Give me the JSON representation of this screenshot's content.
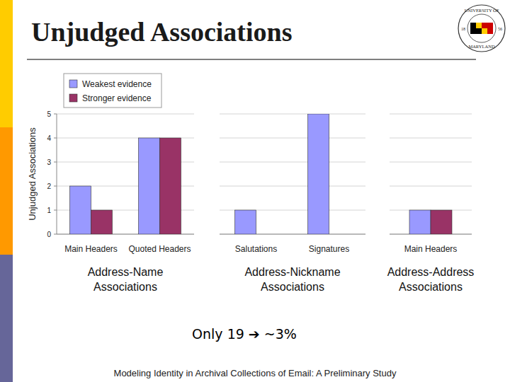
{
  "title": "Unjudged Associations",
  "logo": {
    "top": "UNIVERSITY OF",
    "bottom": "MARYLAND",
    "left": "18",
    "right": "56"
  },
  "chart_data": [
    {
      "type": "bar",
      "categories": [
        "Main Headers",
        "Quoted Headers"
      ],
      "series": [
        {
          "name": "Weakest evidence",
          "color": "#9999ff",
          "values": [
            2,
            4
          ]
        },
        {
          "name": "Stronger evidence",
          "color": "#993366",
          "values": [
            1,
            4
          ]
        }
      ],
      "x_label": "Address-Name Associations",
      "y_label": "Unjudged Associations",
      "ylim": [
        0,
        5
      ],
      "yticks": [
        0,
        1,
        2,
        3,
        4,
        5
      ],
      "grid": true,
      "legend": "top"
    },
    {
      "type": "bar",
      "categories": [
        "Salutations",
        "Signatures"
      ],
      "series": [
        {
          "name": "Weakest evidence",
          "color": "#9999ff",
          "values": [
            1,
            5
          ]
        },
        {
          "name": "Stronger evidence",
          "color": "#993366",
          "values": [
            0,
            0
          ]
        }
      ],
      "x_label": "Address-Nickname Associations",
      "ylim": [
        0,
        5
      ],
      "yticks": [
        0,
        1,
        2,
        3,
        4,
        5
      ],
      "grid": true,
      "tick_labels": "x"
    },
    {
      "type": "bar",
      "categories": [
        "Main Headers"
      ],
      "series": [
        {
          "name": "Weakest evidence",
          "color": "#9999ff",
          "values": [
            1
          ]
        },
        {
          "name": "Stronger evidence",
          "color": "#993366",
          "values": [
            1
          ]
        }
      ],
      "x_label": "Address-Address Associations",
      "ylim": [
        0,
        5
      ],
      "yticks": [
        0,
        1,
        2,
        3,
        4,
        5
      ],
      "grid": true,
      "tick_labels": "x"
    }
  ],
  "note": "Only 19 ➔ ~3%",
  "footer": "Modeling Identity in Archival Collections of Email: A Preliminary Study"
}
